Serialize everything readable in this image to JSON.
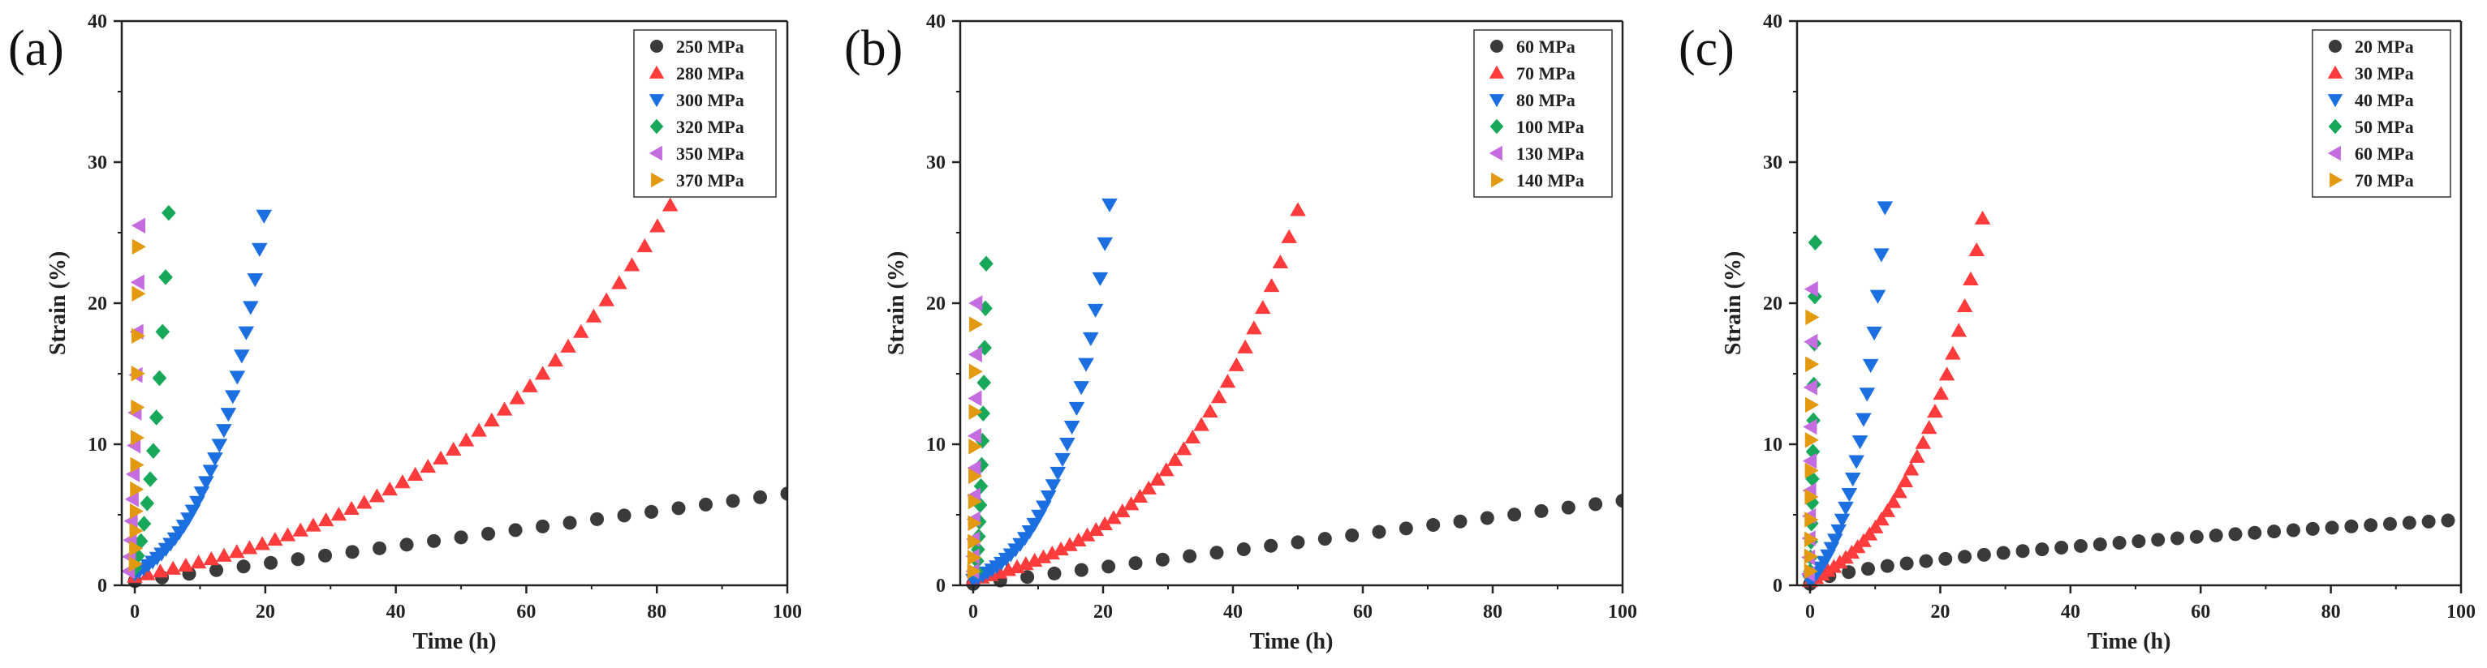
{
  "figure": {
    "panels": [
      {
        "tag": "(a)"
      },
      {
        "tag": "(b)"
      },
      {
        "tag": "(c)"
      }
    ]
  },
  "colors": {
    "s1": "#3a3a3a",
    "s2": "#ff3b3b",
    "s3": "#1c6fe0",
    "s4": "#17a85a",
    "s5": "#c46ce0",
    "s6": "#e39a10",
    "axis": "#222222"
  },
  "chart_data": [
    {
      "type": "scatter",
      "title": "(a)",
      "xlabel": "Time (h)",
      "ylabel": "Strain (%)",
      "xlim": [
        -2,
        100
      ],
      "ylim": [
        0,
        40
      ],
      "xticks": [
        0,
        20,
        40,
        60,
        80,
        100
      ],
      "yticks": [
        0,
        10,
        20,
        30,
        40
      ],
      "legend_position": "top-right",
      "series": [
        {
          "name": "250 MPa",
          "marker": "circle",
          "color_key": "s1",
          "curve": {
            "mode": "lin",
            "t0": 0,
            "tf": 100,
            "e0": 0.3,
            "ef": 6.5,
            "n": 25
          }
        },
        {
          "name": "280 MPa",
          "marker": "triangle-up",
          "color_key": "s2",
          "curve": {
            "mode": "exp",
            "t0": 0,
            "tf": 84,
            "e0": 0.6,
            "ef": 28.5,
            "k": 2.2,
            "n": 44
          }
        },
        {
          "name": "300 MPa",
          "marker": "triangle-down",
          "color_key": "s3",
          "curve": {
            "mode": "exp",
            "t0": 0,
            "tf": 19.8,
            "e0": 0.8,
            "ef": 26.2,
            "k": 2.6,
            "n": 30
          }
        },
        {
          "name": "320 MPa",
          "marker": "diamond",
          "color_key": "s4",
          "curve": {
            "mode": "exp",
            "t0": 0,
            "tf": 5.2,
            "e0": 1.2,
            "ef": 26.4,
            "k": 1.8,
            "n": 12
          }
        },
        {
          "name": "350 MPa",
          "marker": "triangle-left",
          "color_key": "s5",
          "curve": {
            "mode": "exp",
            "t0": -0.9,
            "tf": 0.7,
            "e0": 1.0,
            "ef": 25.5,
            "k": 1.5,
            "n": 12
          }
        },
        {
          "name": "370 MPa",
          "marker": "triangle-right",
          "color_key": "s6",
          "curve": {
            "mode": "exp",
            "t0": 0,
            "tf": 0.5,
            "e0": 1.5,
            "ef": 24.0,
            "k": 1.2,
            "n": 12
          }
        }
      ]
    },
    {
      "type": "scatter",
      "title": "(b)",
      "xlabel": "Time (h)",
      "ylabel": "Strain (%)",
      "xlim": [
        -2,
        100
      ],
      "ylim": [
        0,
        40
      ],
      "xticks": [
        0,
        20,
        40,
        60,
        80,
        100
      ],
      "yticks": [
        0,
        10,
        20,
        30,
        40
      ],
      "legend_position": "top-right",
      "series": [
        {
          "name": "60 MPa",
          "marker": "circle",
          "color_key": "s1",
          "curve": {
            "mode": "lin",
            "t0": 0,
            "tf": 100,
            "e0": 0.1,
            "ef": 6.0,
            "n": 25
          }
        },
        {
          "name": "70 MPa",
          "marker": "triangle-up",
          "color_key": "s2",
          "curve": {
            "mode": "exp",
            "t0": 0,
            "tf": 50,
            "e0": 0.4,
            "ef": 26.6,
            "k": 2.6,
            "n": 38
          }
        },
        {
          "name": "80 MPa",
          "marker": "triangle-down",
          "color_key": "s3",
          "curve": {
            "mode": "exp",
            "t0": 0,
            "tf": 21,
            "e0": 0.4,
            "ef": 27.0,
            "k": 3.0,
            "n": 30
          }
        },
        {
          "name": "100 MPa",
          "marker": "diamond",
          "color_key": "s4",
          "curve": {
            "mode": "exp",
            "t0": 0.5,
            "tf": 2.0,
            "e0": 1.0,
            "ef": 22.8,
            "k": 1.6,
            "n": 14
          }
        },
        {
          "name": "130 MPa",
          "marker": "triangle-left",
          "color_key": "s5",
          "curve": {
            "mode": "exp",
            "t0": 0,
            "tf": 0.5,
            "e0": 1.0,
            "ef": 20.0,
            "k": 1.4,
            "n": 10
          }
        },
        {
          "name": "140 MPa",
          "marker": "triangle-right",
          "color_key": "s6",
          "curve": {
            "mode": "exp",
            "t0": 0,
            "tf": 0.3,
            "e0": 1.0,
            "ef": 18.5,
            "k": 1.4,
            "n": 10
          }
        }
      ]
    },
    {
      "type": "scatter",
      "title": "(c)",
      "xlabel": "Time (h)",
      "ylabel": "Strain (%)",
      "xlim": [
        -2,
        100
      ],
      "ylim": [
        0,
        40
      ],
      "xticks": [
        0,
        20,
        40,
        60,
        80,
        100
      ],
      "yticks": [
        0,
        10,
        20,
        30,
        40
      ],
      "legend_position": "top-right",
      "series": [
        {
          "name": "20 MPa",
          "marker": "circle",
          "color_key": "s1",
          "curve": {
            "mode": "pow",
            "t0": 0,
            "tf": 98,
            "e0": 0.1,
            "ef": 4.6,
            "k": 0.6,
            "n": 34
          }
        },
        {
          "name": "30 MPa",
          "marker": "triangle-up",
          "color_key": "s2",
          "curve": {
            "mode": "exp",
            "t0": 0,
            "tf": 26.5,
            "e0": 0.3,
            "ef": 26.0,
            "k": 2.4,
            "n": 30
          }
        },
        {
          "name": "40 MPa",
          "marker": "triangle-down",
          "color_key": "s3",
          "curve": {
            "mode": "exp",
            "t0": 0,
            "tf": 11.5,
            "e0": 0.3,
            "ef": 26.8,
            "k": 2.6,
            "n": 22
          }
        },
        {
          "name": "50 MPa",
          "marker": "diamond",
          "color_key": "s4",
          "curve": {
            "mode": "exp",
            "t0": 0,
            "tf": 0.8,
            "e0": 1.0,
            "ef": 24.3,
            "k": 1.5,
            "n": 12
          }
        },
        {
          "name": "60 MPa",
          "marker": "triangle-left",
          "color_key": "s5",
          "curve": {
            "mode": "exp",
            "t0": -0.2,
            "tf": 0.3,
            "e0": 0.8,
            "ef": 21.0,
            "k": 1.3,
            "n": 10
          }
        },
        {
          "name": "70 MPa",
          "marker": "triangle-right",
          "color_key": "s6",
          "curve": {
            "mode": "exp",
            "t0": 0,
            "tf": 0.2,
            "e0": 1.0,
            "ef": 19.0,
            "k": 1.3,
            "n": 10
          }
        }
      ]
    }
  ]
}
